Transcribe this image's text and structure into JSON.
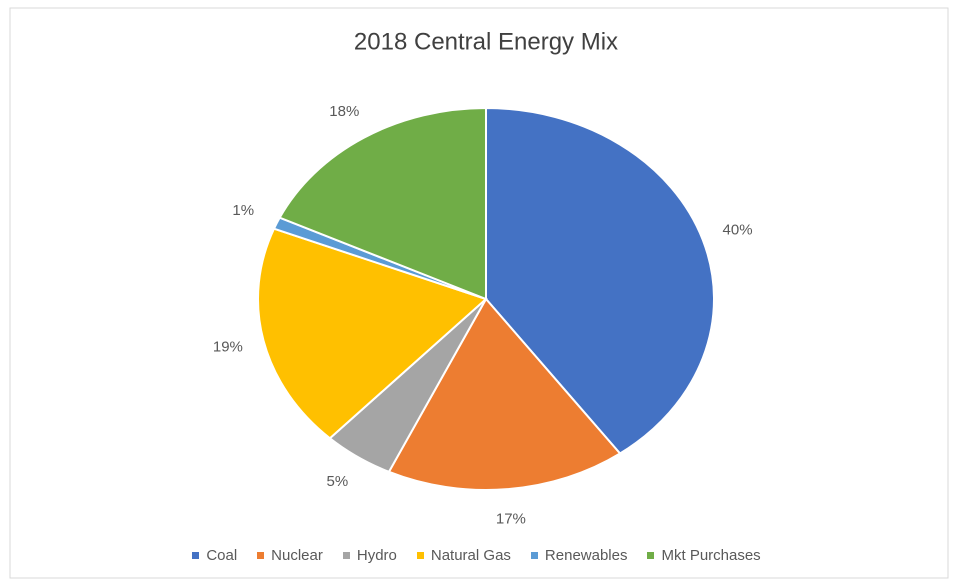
{
  "chart_data": {
    "type": "pie",
    "title": "2018 Central Energy Mix",
    "categories": [
      "Coal",
      "Nuclear",
      "Hydro",
      "Natural Gas",
      "Renewables",
      "Mkt Purchases"
    ],
    "values": [
      40,
      17,
      5,
      19,
      1,
      18
    ],
    "value_labels": [
      "40%",
      "17%",
      "5%",
      "19%",
      "1%",
      "18%"
    ],
    "colors": [
      "#4472c4",
      "#ed7d31",
      "#a5a5a5",
      "#ffc000",
      "#5b9bd5",
      "#70ad47"
    ],
    "legend": "bottom"
  }
}
